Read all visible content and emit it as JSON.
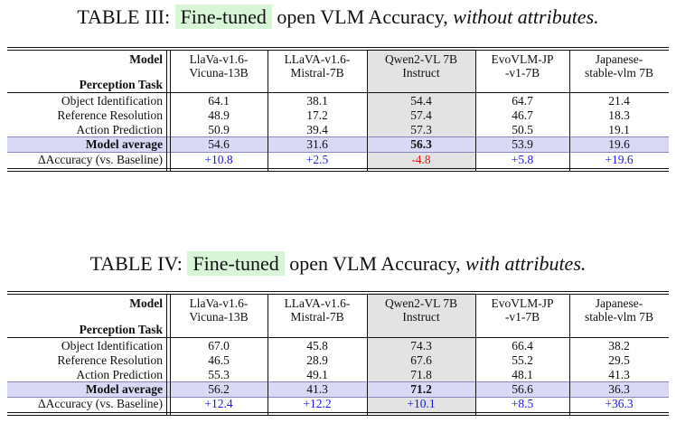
{
  "tables": [
    {
      "label": "TABLE III:",
      "highlight": "Fine-tuned",
      "title_mid": "open VLM Accuracy,",
      "title_italic": "without attributes.",
      "header_model": "Model",
      "header_task": "Perception Task",
      "models": [
        {
          "line1": "LlaVa-v1.6-",
          "line2": "Vicuna-13B"
        },
        {
          "line1": "LLaVA-v1.6-",
          "line2": "Mistral-7B"
        },
        {
          "line1": "Qwen2-VL 7B",
          "line2": "Instruct"
        },
        {
          "line1": "EvoVLM-JP",
          "line2": "-v1-7B"
        },
        {
          "line1": "Japanese-",
          "line2": "stable-vlm 7B"
        }
      ],
      "rows": [
        {
          "task": "Object Identification",
          "values": [
            "64.1",
            "38.1",
            "54.4",
            "64.7",
            "21.4"
          ]
        },
        {
          "task": "Reference Resolution",
          "values": [
            "48.9",
            "17.2",
            "57.4",
            "46.7",
            "18.3"
          ]
        },
        {
          "task": "Action Prediction",
          "values": [
            "50.9",
            "39.4",
            "57.3",
            "50.5",
            "19.1"
          ]
        }
      ],
      "average": {
        "task": "Model average",
        "values": [
          "54.6",
          "31.6",
          "56.3",
          "53.9",
          "19.6"
        ]
      },
      "delta": {
        "task": "ΔAccuracy (vs. Baseline)",
        "values": [
          "+10.8",
          "+2.5",
          "-4.8",
          "+5.8",
          "+19.6"
        ]
      }
    },
    {
      "label": "TABLE IV:",
      "highlight": "Fine-tuned",
      "title_mid": "open VLM Accuracy,",
      "title_italic": "with attributes.",
      "header_model": "Model",
      "header_task": "Perception Task",
      "models": [
        {
          "line1": "LlaVa-v1.6-",
          "line2": "Vicuna-13B"
        },
        {
          "line1": "LLaVA-v1.6-",
          "line2": "Mistral-7B"
        },
        {
          "line1": "Qwen2-VL 7B",
          "line2": "Instruct"
        },
        {
          "line1": "EvoVLM-JP",
          "line2": "-v1-7B"
        },
        {
          "line1": "Japanese-",
          "line2": "stable-vlm 7B"
        }
      ],
      "rows": [
        {
          "task": "Object Identification",
          "values": [
            "67.0",
            "45.8",
            "74.3",
            "66.4",
            "38.2"
          ]
        },
        {
          "task": "Reference Resolution",
          "values": [
            "46.5",
            "28.9",
            "67.6",
            "55.2",
            "29.5"
          ]
        },
        {
          "task": "Action Prediction",
          "values": [
            "55.3",
            "49.1",
            "71.8",
            "48.1",
            "41.3"
          ]
        }
      ],
      "average": {
        "task": "Model average",
        "values": [
          "56.2",
          "41.3",
          "71.2",
          "56.6",
          "36.3"
        ]
      },
      "delta": {
        "task": "ΔAccuracy (vs. Baseline)",
        "values": [
          "+12.4",
          "+12.2",
          "+10.1",
          "+8.5",
          "+36.3"
        ]
      }
    }
  ],
  "colors": {
    "highlight_bg": "#d8f5d8",
    "qwen_column_bg": "#e3e3e3",
    "average_row_bg": "#d9d9f5",
    "positive_delta": "#1a1ae6",
    "negative_delta": "#e61a1a"
  }
}
